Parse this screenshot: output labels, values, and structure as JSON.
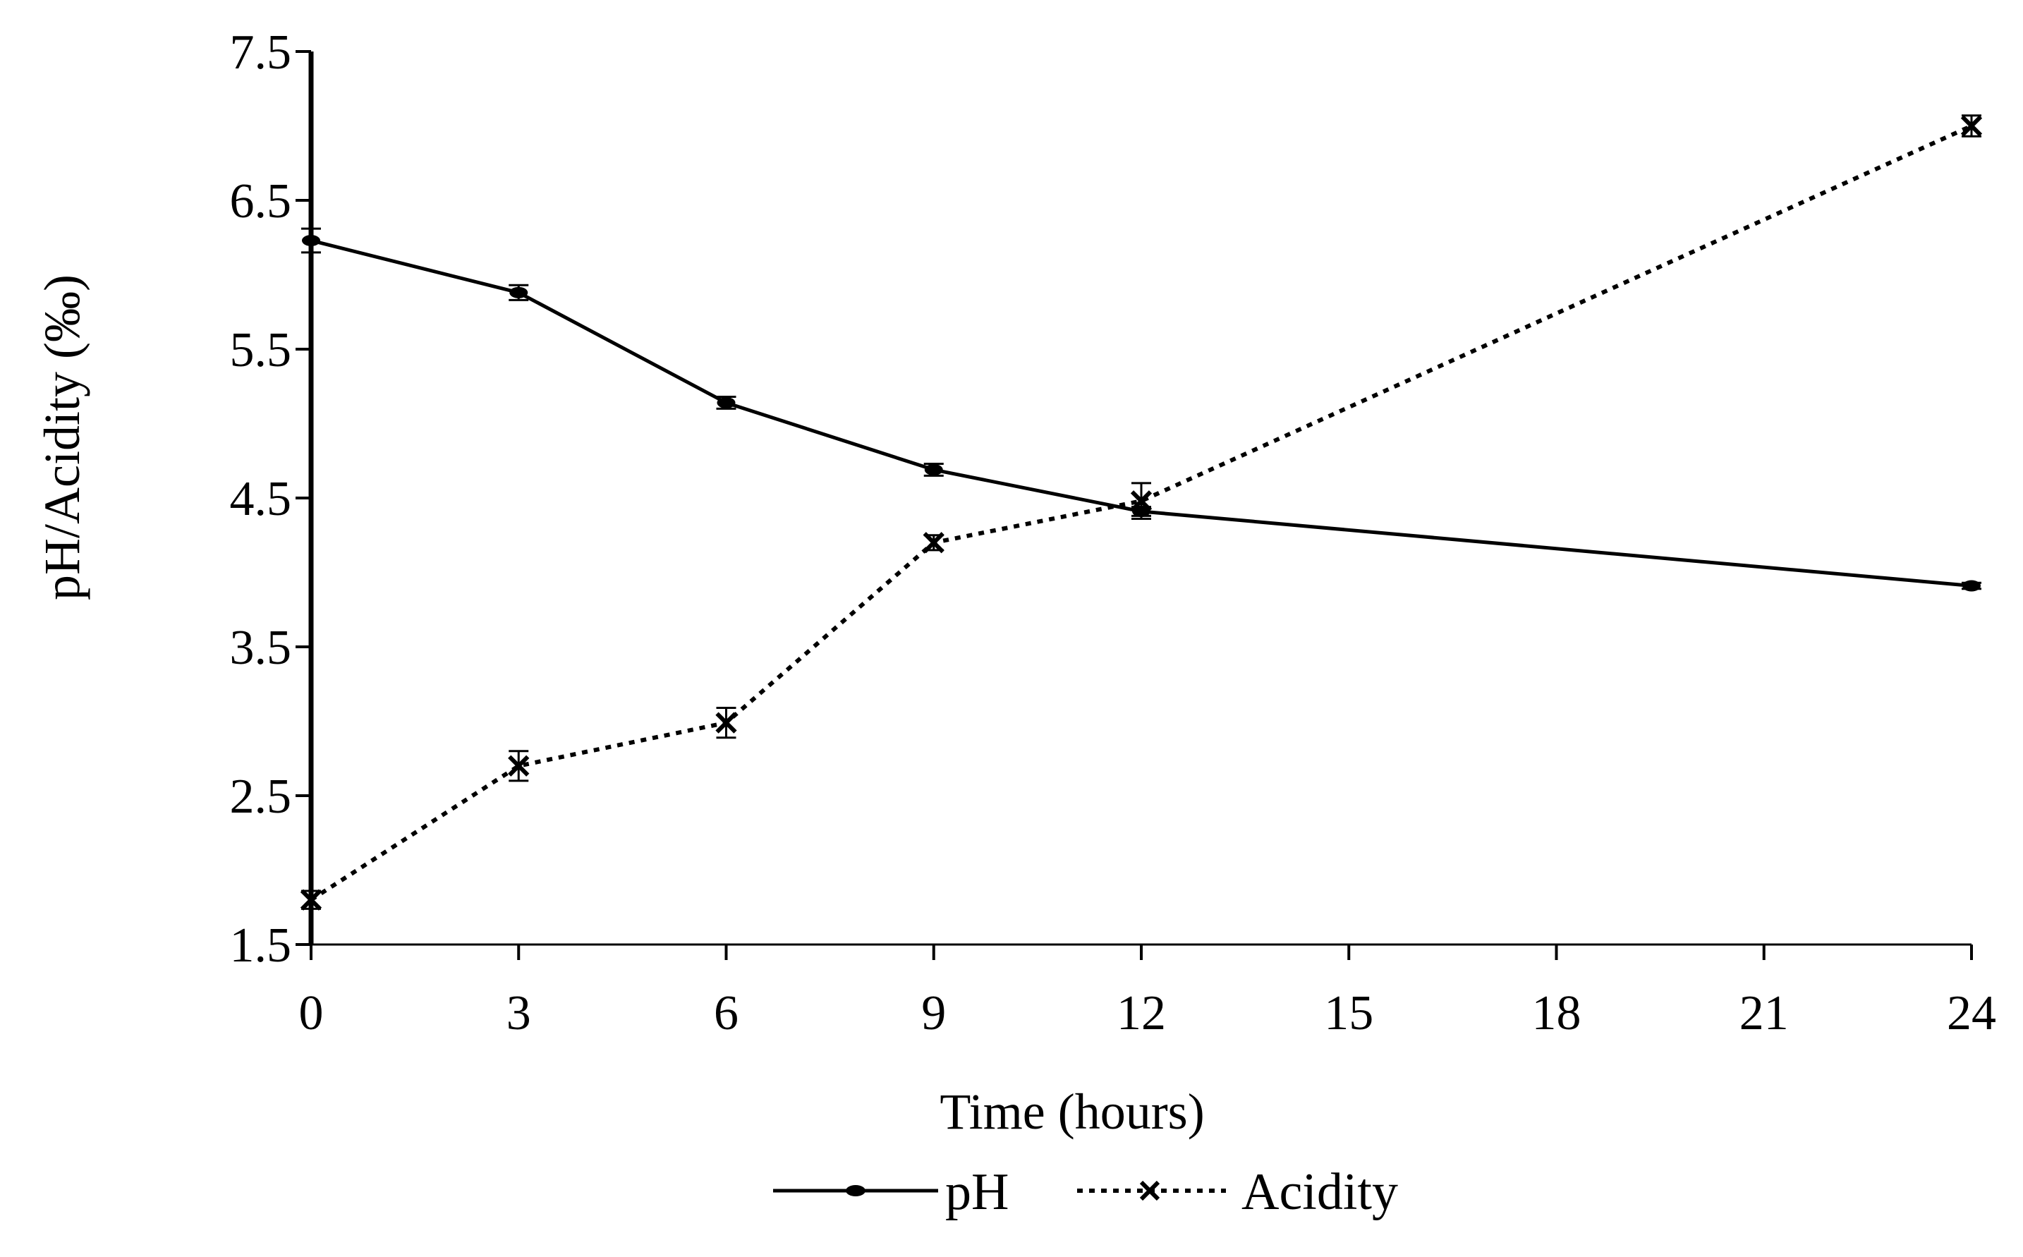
{
  "chart_data": {
    "type": "line",
    "title": "",
    "xlabel": "Time (hours)",
    "ylabel": "pH/Acidity (‰)",
    "x": [
      0,
      3,
      6,
      9,
      12,
      24
    ],
    "xlim": [
      0,
      24
    ],
    "ylim": [
      1.5,
      7.5
    ],
    "xticks": [
      0,
      3,
      6,
      9,
      12,
      15,
      18,
      21,
      24
    ],
    "xtick_labels": [
      "0",
      "3",
      "6",
      "9",
      "12",
      "15",
      "18",
      "21",
      "24"
    ],
    "yticks": [
      1.5,
      2.5,
      3.5,
      4.5,
      5.5,
      6.5,
      7.5
    ],
    "ytick_labels": [
      "1.5",
      "2.5",
      "3.5",
      "4.5",
      "5.5",
      "6.5",
      "7.5"
    ],
    "grid": false,
    "legend_position": "bottom-center",
    "series": [
      {
        "name": "pH",
        "marker": "dot",
        "line_style": "solid",
        "values": [
          6.23,
          5.88,
          5.14,
          4.69,
          4.41,
          3.91
        ],
        "errors": [
          0.08,
          0.05,
          0.04,
          0.04,
          0.03,
          0.02
        ]
      },
      {
        "name": "Acidity",
        "marker": "x",
        "line_style": "dotted",
        "values": [
          1.8,
          2.7,
          2.99,
          4.2,
          4.48,
          7.0
        ],
        "errors": [
          0.06,
          0.1,
          0.1,
          0.05,
          0.12,
          0.07
        ]
      }
    ],
    "colors": {
      "line": "#000000",
      "background": "#ffffff"
    }
  }
}
